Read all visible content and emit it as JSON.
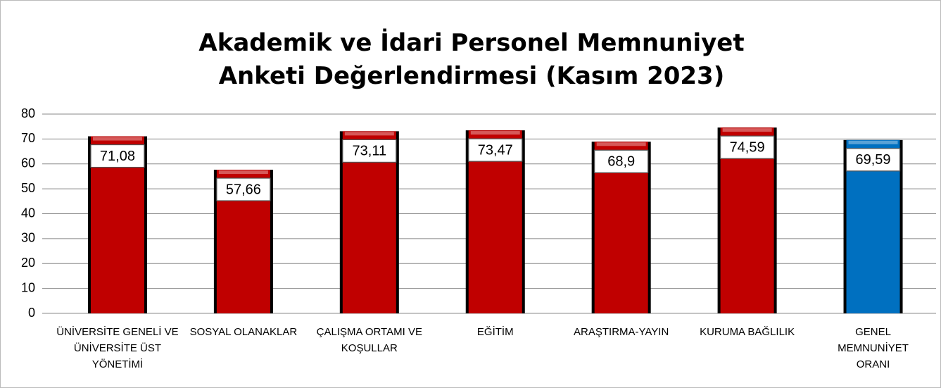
{
  "chart_data": {
    "type": "bar",
    "title": "Akademik ve İdari Personel Memnuniyet Anketi Değerlendirmesi (Kasım 2023)",
    "categories": [
      "ÜNİVERSİTE GENELİ VE ÜNİVERSİTE ÜST YÖNETİMİ",
      "SOSYAL OLANAKLAR",
      "ÇALIŞMA ORTAMI VE KOŞULLAR",
      "EĞİTİM",
      "ARAŞTIRMA-YAYIN",
      "KURUMA BAĞLILIK",
      "GENEL MEMNUNİYET ORANI"
    ],
    "values": [
      71.08,
      57.66,
      73.11,
      73.47,
      68.9,
      74.59,
      69.59
    ],
    "value_labels": [
      "71,08",
      "57,66",
      "73,11",
      "73,47",
      "68,9",
      "74,59",
      "69,59"
    ],
    "colors": [
      "#c00000",
      "#c00000",
      "#c00000",
      "#c00000",
      "#c00000",
      "#c00000",
      "#0070c0"
    ],
    "ylim": [
      0,
      80
    ],
    "yticks": [
      0,
      10,
      20,
      30,
      40,
      50,
      60,
      70,
      80
    ],
    "grid": true
  }
}
